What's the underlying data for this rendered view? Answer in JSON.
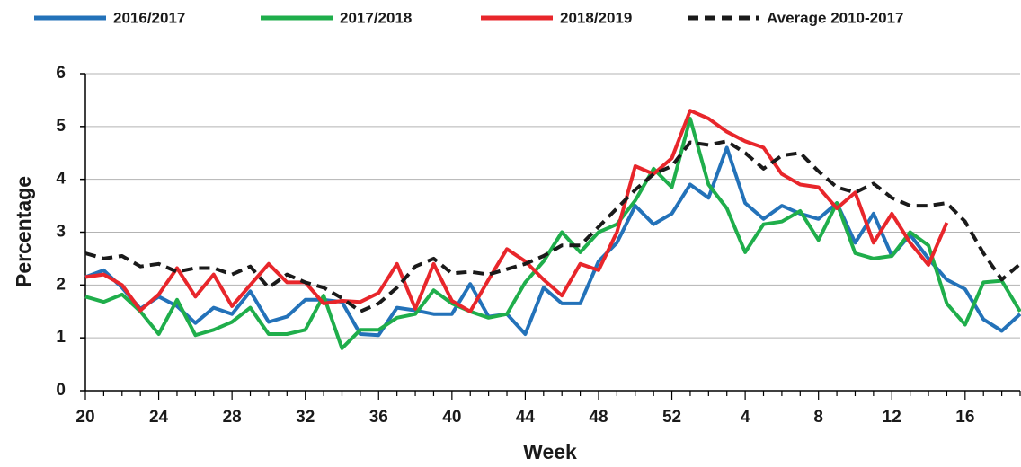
{
  "chart_data": {
    "type": "line",
    "x_label": "Week",
    "y_label": "Percentage",
    "categories": [
      20,
      null,
      null,
      null,
      24,
      null,
      null,
      null,
      28,
      null,
      null,
      null,
      32,
      null,
      null,
      null,
      36,
      null,
      null,
      null,
      40,
      null,
      null,
      null,
      44,
      null,
      null,
      null,
      48,
      null,
      null,
      null,
      52,
      null,
      null,
      null,
      4,
      null,
      null,
      null,
      8,
      null,
      null,
      null,
      12,
      null,
      null,
      null,
      16,
      null,
      null,
      null
    ],
    "ylim": [
      0,
      6
    ],
    "yticks": [
      0,
      1,
      2,
      3,
      4,
      5,
      6
    ],
    "grid": true,
    "legend": "top",
    "series": [
      {
        "name": "2016/2017",
        "color": "#2372b9",
        "values": [
          2.15,
          2.28,
          1.95,
          1.55,
          1.78,
          1.6,
          1.28,
          1.57,
          1.45,
          1.88,
          1.3,
          1.4,
          1.72,
          1.72,
          1.68,
          1.07,
          1.05,
          1.57,
          1.52,
          1.45,
          1.45,
          2.02,
          1.4,
          1.45,
          1.07,
          1.95,
          1.65,
          1.65,
          2.45,
          2.8,
          3.5,
          3.15,
          3.35,
          3.9,
          3.65,
          4.6,
          3.55,
          3.25,
          3.5,
          3.35,
          3.25,
          3.55,
          2.8,
          3.35,
          2.55,
          2.95,
          2.5,
          2.1,
          1.92,
          1.35,
          1.13,
          1.45
        ]
      },
      {
        "name": "2017/2018",
        "color": "#1fae4b",
        "values": [
          1.78,
          1.68,
          1.82,
          1.5,
          1.07,
          1.72,
          1.05,
          1.15,
          1.3,
          1.57,
          1.07,
          1.07,
          1.15,
          1.8,
          0.8,
          1.15,
          1.15,
          1.38,
          1.45,
          1.9,
          1.65,
          1.5,
          1.38,
          1.45,
          2.05,
          2.45,
          3.0,
          2.62,
          3.0,
          3.15,
          3.6,
          4.2,
          3.85,
          5.15,
          3.9,
          3.45,
          2.62,
          3.15,
          3.2,
          3.4,
          2.85,
          3.55,
          2.6,
          2.5,
          2.55,
          3.0,
          2.75,
          1.65,
          1.25,
          2.05,
          2.08,
          1.5
        ]
      },
      {
        "name": "2018/2019",
        "color": "#e8262b",
        "values": [
          2.15,
          2.2,
          2.0,
          1.52,
          1.82,
          2.32,
          1.78,
          2.2,
          1.6,
          2.0,
          2.4,
          2.05,
          2.05,
          1.65,
          1.7,
          1.68,
          1.85,
          2.4,
          1.55,
          2.4,
          1.7,
          1.5,
          2.1,
          2.68,
          2.45,
          2.1,
          1.8,
          2.4,
          2.28,
          3.0,
          4.25,
          4.1,
          4.4,
          5.3,
          5.15,
          4.9,
          4.72,
          4.6,
          4.1,
          3.9,
          3.85,
          3.45,
          3.75,
          2.8,
          3.35,
          2.8,
          2.38,
          3.18,
          null,
          null,
          null,
          null
        ]
      },
      {
        "name": "Average 2010-2017",
        "color": "#1a1a1a",
        "dashed": true,
        "values": [
          2.6,
          2.5,
          2.55,
          2.35,
          2.4,
          2.25,
          2.32,
          2.32,
          2.2,
          2.35,
          1.95,
          2.2,
          2.05,
          1.95,
          1.75,
          1.5,
          1.65,
          1.95,
          2.35,
          2.5,
          2.22,
          2.25,
          2.2,
          2.3,
          2.4,
          2.55,
          2.75,
          2.75,
          3.1,
          3.45,
          3.8,
          4.1,
          4.25,
          4.7,
          4.65,
          4.72,
          4.5,
          4.2,
          4.45,
          4.5,
          4.15,
          3.85,
          3.75,
          3.92,
          3.65,
          3.5,
          3.5,
          3.55,
          3.2,
          2.6,
          2.1,
          2.4
        ]
      }
    ]
  }
}
